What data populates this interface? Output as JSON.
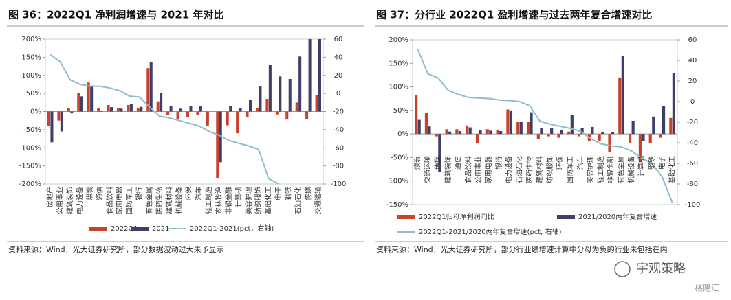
{
  "chart_data": [
    {
      "type": "bar",
      "title": "图 36：2022Q1 净利润增速与 2021 年对比",
      "categories": [
        "房地产",
        "公用事业",
        "建筑装饰",
        "电力设备",
        "煤炭",
        "通信",
        "食品饮料",
        "家用电器",
        "国防军工",
        "银行",
        "有色金属",
        "医药生物",
        "建筑材料",
        "机械设备",
        "环保",
        "汽车",
        "轻工制造",
        "农林牧渔",
        "非银金融",
        "计算机",
        "美容护理",
        "纺织服饰",
        "基础化工",
        "电子",
        "钢铁",
        "石油石化",
        "传媒",
        "交通运输"
      ],
      "series": [
        {
          "name": "2022Q1",
          "color": "#c8412b",
          "values": [
            -40,
            -25,
            10,
            52,
            80,
            10,
            18,
            10,
            18,
            10,
            120,
            28,
            -10,
            -20,
            -15,
            -10,
            -40,
            -185,
            -38,
            -60,
            -15,
            10,
            35,
            -8,
            -22,
            25,
            -20,
            45
          ]
        },
        {
          "name": "2021",
          "color": "#3f3f67",
          "values": [
            -85,
            -55,
            -5,
            42,
            72,
            3,
            12,
            8,
            20,
            13,
            137,
            52,
            15,
            8,
            15,
            15,
            0,
            -140,
            15,
            10,
            33,
            70,
            128,
            97,
            90,
            152,
            200,
            200
          ]
        },
        {
          "name": "2022Q1-2021(pct，右轴)",
          "color": "#8dbccc",
          "type": "line",
          "axis": "y2",
          "values": [
            43,
            35,
            15,
            10,
            8,
            8,
            6,
            3,
            -3,
            -4,
            -15,
            -25,
            -27,
            -30,
            -33,
            -36,
            -42,
            -46,
            -52,
            -55,
            -58,
            -62,
            -94,
            -100,
            null,
            null,
            null,
            null
          ]
        }
      ],
      "ylim": [
        -200,
        200
      ],
      "yticks": [
        {
          "value": -200,
          "label": "-200%"
        },
        {
          "value": -150,
          "label": "-150%"
        },
        {
          "value": -100,
          "label": "-100%"
        },
        {
          "value": -50,
          "label": "-50%"
        },
        {
          "value": 0,
          "label": "0%"
        },
        {
          "value": 50,
          "label": "50%"
        },
        {
          "value": 100,
          "label": "100%"
        },
        {
          "value": 150,
          "label": "150%"
        },
        {
          "value": 200,
          "label": "200%"
        }
      ],
      "y2lim": [
        -100,
        60
      ],
      "y2ticks": [
        -100,
        -80,
        -60,
        -40,
        -20,
        0,
        20,
        40,
        60
      ],
      "source": "资料来源：Wind，光大证券研究所，部分数据波动过大未予显示"
    },
    {
      "type": "bar",
      "title": "图 37：分行业 2022Q1 盈利增速与过去两年复合增速对比",
      "categories": [
        "煤炭",
        "交通运输",
        "传媒",
        "建筑装饰",
        "通信",
        "食品饮料",
        "公用事业",
        "家用电器",
        "银行",
        "电力设备",
        "石油石化",
        "医药生物",
        "建筑材料",
        "纺织服饰",
        "环保",
        "国防军工",
        "汽车",
        "美容护理",
        "轻工制造",
        "非银金融",
        "有色金属",
        "机械设备",
        "计算机",
        "钢铁",
        "电子",
        "基础化工"
      ],
      "series": [
        {
          "name": "2022Q1归母净利润同比",
          "color": "#c8412b",
          "values": [
            82,
            44,
            -5,
            10,
            10,
            18,
            -20,
            10,
            8,
            52,
            25,
            25,
            -10,
            -5,
            -8,
            5,
            -5,
            -15,
            -15,
            -38,
            120,
            -20,
            -60,
            -20,
            -8,
            34
          ]
        },
        {
          "name": "2021/2020两年复合增速",
          "color": "#3f3f67",
          "values": [
            30,
            16,
            -80,
            5,
            6,
            14,
            8,
            7,
            6,
            50,
            26,
            46,
            13,
            12,
            8,
            40,
            13,
            15,
            3,
            3,
            165,
            28,
            -15,
            37,
            60,
            130
          ]
        },
        {
          "name": "2022Q1-2021/2020两年复合增速(pct, 右轴)",
          "color": "#8dbccc",
          "type": "line",
          "axis": "y2",
          "values": [
            51,
            27,
            23,
            11,
            7,
            4,
            3.5,
            3,
            1.5,
            1,
            0,
            -4,
            -19,
            -22,
            -24,
            -26,
            -29,
            -36,
            -41,
            -43,
            -44,
            -48,
            -55,
            -60,
            -73,
            -98
          ]
        }
      ],
      "ylim": [
        -150,
        200
      ],
      "yticks": [
        {
          "value": -150,
          "label": "-150%"
        },
        {
          "value": -100,
          "label": "-100%"
        },
        {
          "value": -50,
          "label": "-50%"
        },
        {
          "value": 0,
          "label": "0%"
        },
        {
          "value": 50,
          "label": "50%"
        },
        {
          "value": 100,
          "label": "100%"
        },
        {
          "value": 150,
          "label": "150%"
        },
        {
          "value": 200,
          "label": "200%"
        }
      ],
      "y2lim": [
        -100,
        60
      ],
      "y2ticks": [
        -100,
        -80,
        -60,
        -40,
        -20,
        0,
        20,
        40,
        60
      ],
      "source": "资料来源：Wind，光大证券研究所，部分行业绩增速计算中分母为负的行业未包括在内"
    }
  ],
  "watermark": "宇观策略",
  "brand": "格隆汇"
}
